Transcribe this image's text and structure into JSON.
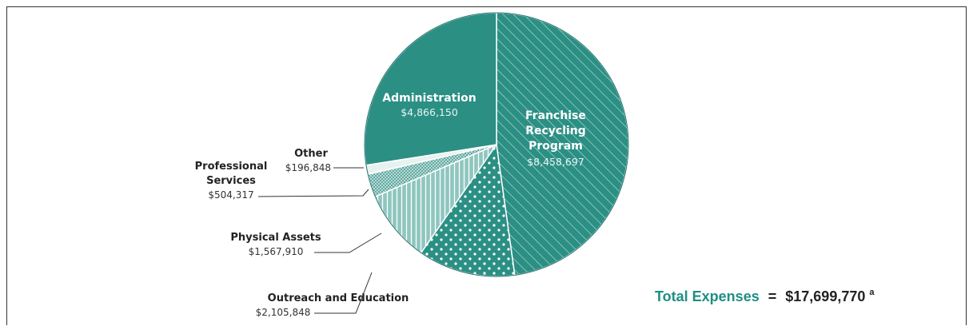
{
  "chart_data": {
    "type": "pie",
    "slices": [
      {
        "name_lines": [
          "Franchise",
          "Recycling",
          "Program"
        ],
        "label": "Franchise Recycling Program",
        "value": 8458697,
        "value_label": "$8,458,697",
        "color": "#2b8f84",
        "pattern": "diagonal-lines"
      },
      {
        "name_lines": [
          "Outreach and Education"
        ],
        "label": "Outreach and Education",
        "value": 2105848,
        "value_label": "$2,105,848",
        "color": "#2b8f84",
        "pattern": "dots"
      },
      {
        "name_lines": [
          "Physical Assets"
        ],
        "label": "Physical Assets",
        "value": 1567910,
        "value_label": "$1,567,910",
        "color": "#7fbdb6",
        "pattern": "vertical-lines"
      },
      {
        "name_lines": [
          "Professional",
          "Services"
        ],
        "label": "Professional Services",
        "value": 504317,
        "value_label": "$504,317",
        "color": "#6fb3ab",
        "pattern": "fine-dots"
      },
      {
        "name_lines": [
          "Other"
        ],
        "label": "Other",
        "value": 196848,
        "value_label": "$196,848",
        "color": "#e7f2f0",
        "pattern": "solid"
      },
      {
        "name_lines": [
          "Administration"
        ],
        "label": "Administration",
        "value": 4866150,
        "value_label": "$4,866,150",
        "color": "#2b8f84",
        "pattern": "solid"
      }
    ],
    "total": {
      "label": "Total Expenses",
      "equals": "=",
      "value_label": "$17,699,770",
      "footnote_marker": "a"
    }
  }
}
